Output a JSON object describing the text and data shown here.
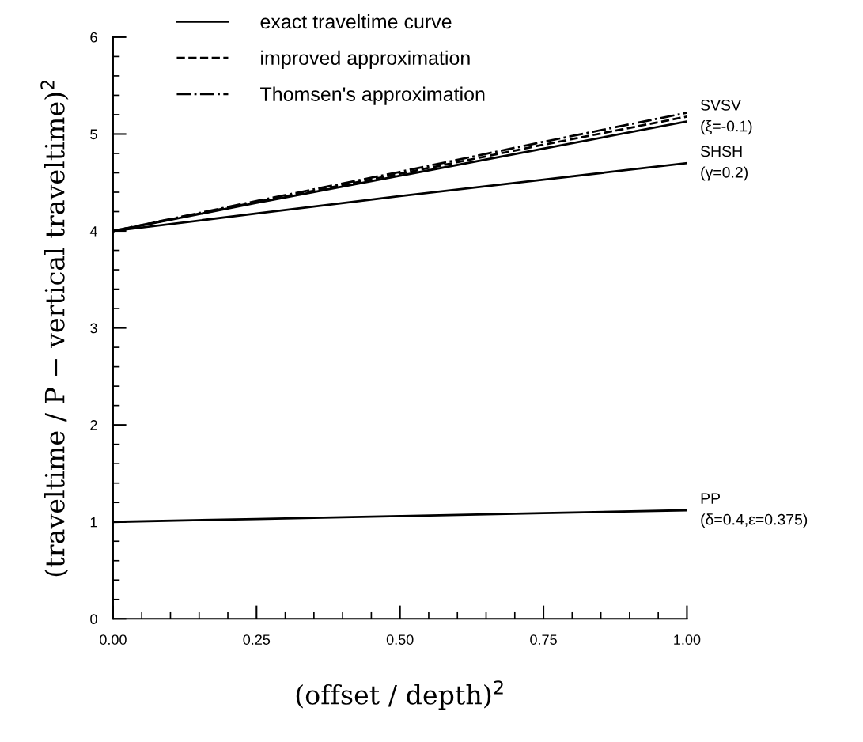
{
  "chart_data": {
    "type": "line",
    "xlabel": "(offset / depth)$^{2}$",
    "ylabel": "(traveltime / P − vertical traveltime)$^{2}$",
    "x": [
      0,
      0.25,
      0.5,
      0.75,
      1
    ],
    "series": [
      {
        "name": "exact traveltime curve",
        "color": "#000000",
        "line_style": "solid",
        "values": [
          4.0,
          4.29,
          4.57,
          4.85,
          5.13
        ]
      },
      {
        "name": "improved approximation",
        "color": "#000000",
        "line_style": "dashed",
        "values": [
          4.0,
          4.3,
          4.59,
          4.89,
          5.18
        ]
      },
      {
        "name": "Thomsen's approximation",
        "color": "#000000",
        "line_style": "dashdot",
        "values": [
          4.0,
          4.31,
          4.61,
          4.92,
          5.22
        ]
      },
      {
        "color": "#000000",
        "line_style": "solid",
        "values": [
          4.0,
          4.18,
          4.36,
          4.53,
          4.7
        ]
      },
      {
        "color": "#000000",
        "line_style": "solid",
        "values": [
          1.0,
          1.03,
          1.06,
          1.09,
          1.12
        ]
      }
    ],
    "annotations": [
      "SVSV\n(ξ=-0.1)",
      "SHSH\n(γ=0.2)",
      "PP\n(δ=0.4,ε=0.375)"
    ],
    "xlim": [
      0,
      1
    ],
    "xticks": [
      {
        "value": 0,
        "label": "0.00"
      },
      {
        "value": 0.05,
        "label": null
      },
      {
        "value": 0.1,
        "label": null
      },
      {
        "value": 0.15,
        "label": null
      },
      {
        "value": 0.2,
        "label": null
      },
      {
        "value": 0.25,
        "label": "0.25"
      },
      {
        "value": 0.3,
        "label": null
      },
      {
        "value": 0.35,
        "label": null
      },
      {
        "value": 0.4,
        "label": null
      },
      {
        "value": 0.45,
        "label": null
      },
      {
        "value": 0.5,
        "label": "0.50"
      },
      {
        "value": 0.55,
        "label": null
      },
      {
        "value": 0.6,
        "label": null
      },
      {
        "value": 0.65,
        "label": null
      },
      {
        "value": 0.7,
        "label": null
      },
      {
        "value": 0.75,
        "label": "0.75"
      },
      {
        "value": 0.8,
        "label": null
      },
      {
        "value": 0.85,
        "label": null
      },
      {
        "value": 0.9,
        "label": null
      },
      {
        "value": 0.95,
        "label": null
      },
      {
        "value": 1,
        "label": "1.00"
      }
    ],
    "ylim": [
      0,
      6
    ],
    "yticks": [
      0,
      {
        "value": 0.2,
        "label": null
      },
      {
        "value": 0.4,
        "label": null
      },
      {
        "value": 0.6,
        "label": null
      },
      {
        "value": 0.8,
        "label": null
      },
      1,
      {
        "value": 1.2,
        "label": null
      },
      {
        "value": 1.4,
        "label": null
      },
      {
        "value": 1.6,
        "label": null
      },
      {
        "value": 1.8,
        "label": null
      },
      2,
      {
        "value": 2.2,
        "label": null
      },
      {
        "value": 2.4,
        "label": null
      },
      {
        "value": 2.6,
        "label": null
      },
      {
        "value": 2.8,
        "label": null
      },
      3,
      {
        "value": 3.2,
        "label": null
      },
      {
        "value": 3.4,
        "label": null
      },
      {
        "value": 3.6,
        "label": null
      },
      {
        "value": 3.8,
        "label": null
      },
      4,
      {
        "value": 4.2,
        "label": null
      },
      {
        "value": 4.4,
        "label": null
      },
      {
        "value": 4.6,
        "label": null
      },
      {
        "value": 4.8,
        "label": null
      },
      5,
      {
        "value": 5.2,
        "label": null
      },
      {
        "value": 5.4,
        "label": null
      },
      {
        "value": 5.6,
        "label": null
      },
      {
        "value": 5.8,
        "label": null
      },
      6
    ],
    "grid": false,
    "legend": "top left"
  }
}
